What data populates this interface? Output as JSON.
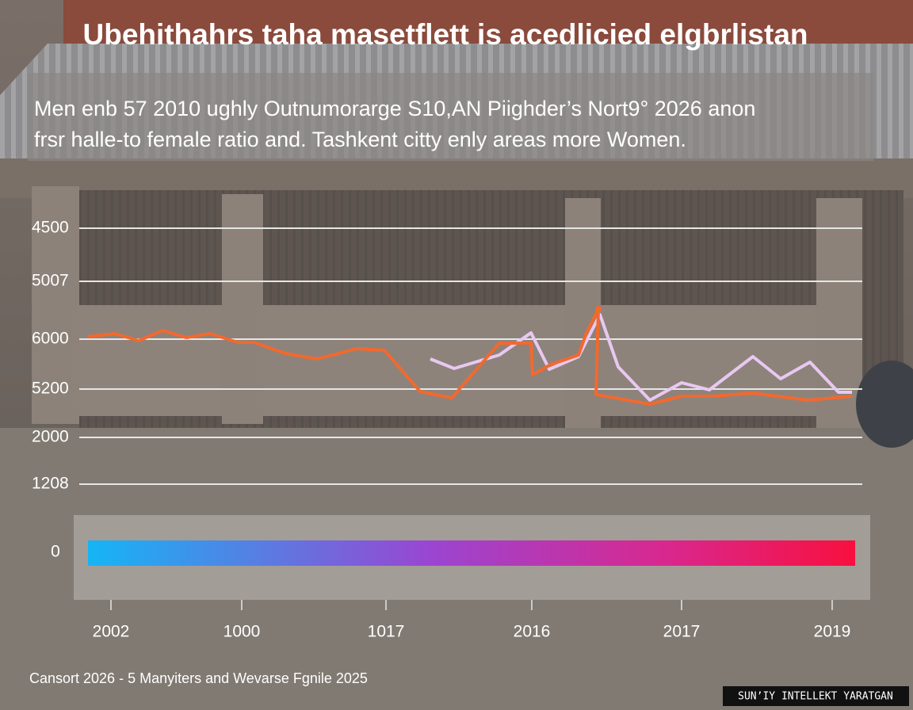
{
  "header": {
    "title": "Ubehithahrs taha masetflett is acedlicied elgbrlistan",
    "subtitle_lines": [
      "Men enb 57 2010 ughly Outnumorarge S10,AN Piighder’s Nort9° 2026  anon",
      "frsr halle-to female ratio and. Tashkent citty enly areas more Women."
    ]
  },
  "y_axis_labels": [
    "4500",
    "5007",
    "6000",
    "5200",
    "2000",
    "1208"
  ],
  "color_bar_label": "0",
  "x_axis_labels": [
    "2002",
    "1000",
    "1017",
    "2016",
    "2017",
    "2019"
  ],
  "footer": "Cansort 2026 - 5 Manyiters and Wevarse Fgnile 2025",
  "watermark": "SUN’IY INTELLEKT YARATGAN"
}
